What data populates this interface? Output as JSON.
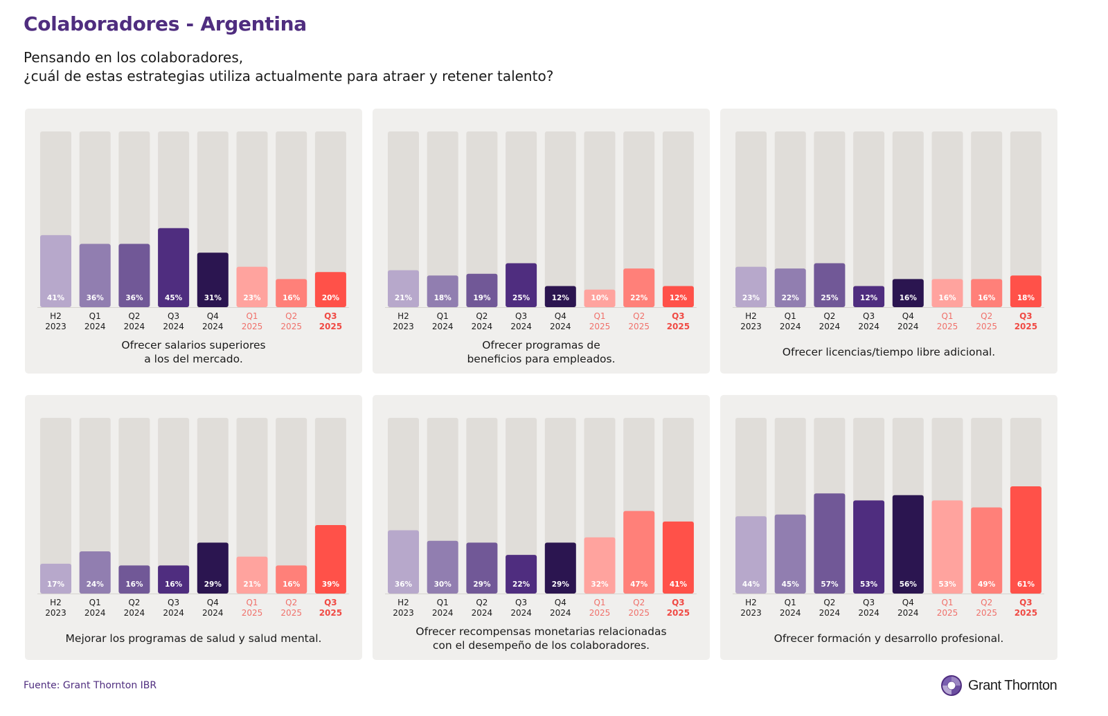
{
  "header": {
    "title": "Colaboradores - Argentina",
    "subtitle_line1": "Pensando en los colaboradores,",
    "subtitle_line2": "¿cuál de estas estrategias utiliza actualmente para atraer y retener talento?"
  },
  "footer": {
    "source": "Fuente: Grant Thornton IBR",
    "logo_text": "Grant Thornton",
    "logo_icon": "grant-thornton-swirl-icon"
  },
  "palette": {
    "title": "#4f2d7f",
    "track": "#e0ddd9",
    "card_bg": "#f0efed",
    "bar_colors": [
      "#b7a8cb",
      "#917eb0",
      "#715897",
      "#4f2d7f",
      "#2b1550",
      "#ffa39e",
      "#ff8079",
      "#ff5149"
    ],
    "label_colors": [
      "#1a1a1a",
      "#1a1a1a",
      "#1a1a1a",
      "#1a1a1a",
      "#1a1a1a",
      "#f0706a",
      "#f0706a",
      "#f04a44"
    ]
  },
  "chart_data": [
    {
      "type": "bar",
      "title": "Ofrecer salarios superiores a los del mercado.",
      "title_lines": [
        "Ofrecer salarios superiores",
        "a los del mercado."
      ],
      "categories": [
        "H2 2023",
        "Q1 2024",
        "Q2 2024",
        "Q3 2024",
        "Q4 2024",
        "Q1 2025",
        "Q2 2025",
        "Q3 2025"
      ],
      "category_lines": [
        [
          "H2",
          "2023"
        ],
        [
          "Q1",
          "2024"
        ],
        [
          "Q2",
          "2024"
        ],
        [
          "Q3",
          "2024"
        ],
        [
          "Q4",
          "2024"
        ],
        [
          "Q1",
          "2025"
        ],
        [
          "Q2",
          "2025"
        ],
        [
          "Q3",
          "2025"
        ]
      ],
      "values": [
        41,
        36,
        36,
        45,
        31,
        23,
        16,
        20
      ],
      "value_labels": [
        "41%",
        "36%",
        "36%",
        "45%",
        "31%",
        "23%",
        "16%",
        "20%"
      ],
      "xlabel": "",
      "ylabel": "",
      "ylim": [
        0,
        100
      ],
      "grid": false
    },
    {
      "type": "bar",
      "title": "Ofrecer programas de beneficios para empleados.",
      "title_lines": [
        "Ofrecer programas de",
        "beneficios para empleados."
      ],
      "categories": [
        "H2 2023",
        "Q1 2024",
        "Q2 2024",
        "Q3 2024",
        "Q4 2024",
        "Q1 2025",
        "Q2 2025",
        "Q3 2025"
      ],
      "category_lines": [
        [
          "H2",
          "2023"
        ],
        [
          "Q1",
          "2024"
        ],
        [
          "Q2",
          "2024"
        ],
        [
          "Q3",
          "2024"
        ],
        [
          "Q4",
          "2024"
        ],
        [
          "Q1",
          "2025"
        ],
        [
          "Q2",
          "2025"
        ],
        [
          "Q3",
          "2025"
        ]
      ],
      "values": [
        21,
        18,
        19,
        25,
        12,
        10,
        22,
        12
      ],
      "value_labels": [
        "21%",
        "18%",
        "19%",
        "25%",
        "12%",
        "10%",
        "22%",
        "12%"
      ],
      "xlabel": "",
      "ylabel": "",
      "ylim": [
        0,
        100
      ],
      "grid": false
    },
    {
      "type": "bar",
      "title": "Ofrecer licencias/tiempo libre adicional.",
      "title_lines": [
        "Ofrecer licencias/tiempo libre adicional."
      ],
      "categories": [
        "H2 2023",
        "Q1 2024",
        "Q2 2024",
        "Q3 2024",
        "Q4 2024",
        "Q1 2025",
        "Q2 2025",
        "Q3 2025"
      ],
      "category_lines": [
        [
          "H2",
          "2023"
        ],
        [
          "Q1",
          "2024"
        ],
        [
          "Q2",
          "2024"
        ],
        [
          "Q3",
          "2024"
        ],
        [
          "Q4",
          "2024"
        ],
        [
          "Q1",
          "2025"
        ],
        [
          "Q2",
          "2025"
        ],
        [
          "Q3",
          "2025"
        ]
      ],
      "values": [
        23,
        22,
        25,
        12,
        16,
        16,
        16,
        18
      ],
      "value_labels": [
        "23%",
        "22%",
        "25%",
        "12%",
        "16%",
        "16%",
        "16%",
        "18%"
      ],
      "xlabel": "",
      "ylabel": "",
      "ylim": [
        0,
        100
      ],
      "grid": false
    },
    {
      "type": "bar",
      "title": "Mejorar los programas de salud y salud mental.",
      "title_lines": [
        "Mejorar los programas de salud y salud mental."
      ],
      "categories": [
        "H2 2023",
        "Q1 2024",
        "Q2 2024",
        "Q3 2024",
        "Q4 2024",
        "Q1 2025",
        "Q2 2025",
        "Q3 2025"
      ],
      "category_lines": [
        [
          "H2",
          "2023"
        ],
        [
          "Q1",
          "2024"
        ],
        [
          "Q2",
          "2024"
        ],
        [
          "Q3",
          "2024"
        ],
        [
          "Q4",
          "2024"
        ],
        [
          "Q1",
          "2025"
        ],
        [
          "Q2",
          "2025"
        ],
        [
          "Q3",
          "2025"
        ]
      ],
      "values": [
        17,
        24,
        16,
        16,
        29,
        21,
        16,
        39
      ],
      "value_labels": [
        "17%",
        "24%",
        "16%",
        "16%",
        "29%",
        "21%",
        "16%",
        "39%"
      ],
      "xlabel": "",
      "ylabel": "",
      "ylim": [
        0,
        100
      ],
      "grid": false
    },
    {
      "type": "bar",
      "title": "Ofrecer recompensas monetarias relacionadas con el desempeño de los colaboradores.",
      "title_lines": [
        "Ofrecer recompensas monetarias relacionadas",
        "con el desempeño de los colaboradores."
      ],
      "categories": [
        "H2 2023",
        "Q1 2024",
        "Q2 2024",
        "Q3 2024",
        "Q4 2024",
        "Q1 2025",
        "Q2 2025",
        "Q3 2025"
      ],
      "category_lines": [
        [
          "H2",
          "2023"
        ],
        [
          "Q1",
          "2024"
        ],
        [
          "Q2",
          "2024"
        ],
        [
          "Q3",
          "2024"
        ],
        [
          "Q4",
          "2024"
        ],
        [
          "Q1",
          "2025"
        ],
        [
          "Q2",
          "2025"
        ],
        [
          "Q3",
          "2025"
        ]
      ],
      "values": [
        36,
        30,
        29,
        22,
        29,
        32,
        47,
        41
      ],
      "value_labels": [
        "36%",
        "30%",
        "29%",
        "22%",
        "29%",
        "32%",
        "47%",
        "41%"
      ],
      "xlabel": "",
      "ylabel": "",
      "ylim": [
        0,
        100
      ],
      "grid": false
    },
    {
      "type": "bar",
      "title": "Ofrecer formación y desarrollo profesional.",
      "title_lines": [
        "Ofrecer formación y desarrollo profesional."
      ],
      "categories": [
        "H2 2023",
        "Q1 2024",
        "Q2 2024",
        "Q3 2024",
        "Q4 2024",
        "Q1 2025",
        "Q2 2025",
        "Q3 2025"
      ],
      "category_lines": [
        [
          "H2",
          "2023"
        ],
        [
          "Q1",
          "2024"
        ],
        [
          "Q2",
          "2024"
        ],
        [
          "Q3",
          "2024"
        ],
        [
          "Q4",
          "2024"
        ],
        [
          "Q1",
          "2025"
        ],
        [
          "Q2",
          "2025"
        ],
        [
          "Q3",
          "2025"
        ]
      ],
      "values": [
        44,
        45,
        57,
        53,
        56,
        53,
        49,
        61
      ],
      "value_labels": [
        "44%",
        "45%",
        "57%",
        "53%",
        "56%",
        "53%",
        "49%",
        "61%"
      ],
      "xlabel": "",
      "ylabel": "",
      "ylim": [
        0,
        100
      ],
      "grid": false
    }
  ]
}
